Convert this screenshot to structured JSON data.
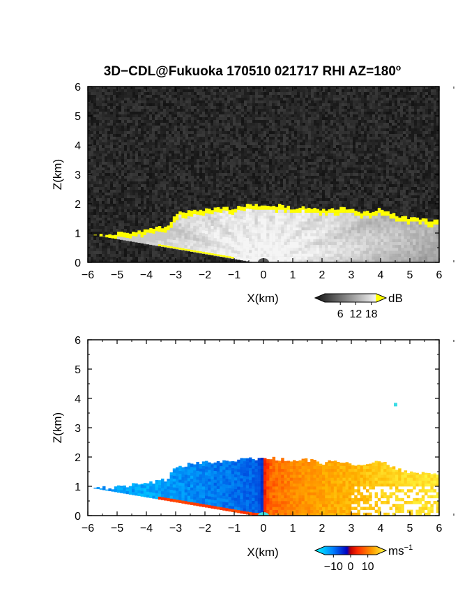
{
  "title": {
    "main": "3D−CDL@Fukuoka 170510 021717 RHI AZ=180",
    "superscript": "o"
  },
  "chart_data": [
    {
      "type": "heatmap",
      "panel": "top",
      "quantity": "backscatter intensity",
      "xlabel": "X(km)",
      "ylabel": "Z(km)",
      "xlim": [
        -6,
        6
      ],
      "ylim": [
        0,
        6
      ],
      "xticks": [
        "−6",
        "−5",
        "−4",
        "−3",
        "−2",
        "−1",
        "0",
        "1",
        "2",
        "3",
        "4",
        "5",
        "6"
      ],
      "yticks": [
        "0",
        "1",
        "2",
        "3",
        "4",
        "5",
        "6"
      ],
      "colorbar": {
        "unit": "dB",
        "ticks": [
          "6",
          "12",
          "18"
        ],
        "range": [
          0,
          20
        ]
      },
      "cloud_top_km": [
        [
          -5.8,
          0.9
        ],
        [
          -5.0,
          0.98
        ],
        [
          -4.0,
          1.1
        ],
        [
          -3.2,
          1.25
        ],
        [
          -3.1,
          1.6
        ],
        [
          -2.8,
          1.7
        ],
        [
          -2.0,
          1.8
        ],
        [
          -1.0,
          1.85
        ],
        [
          -0.5,
          1.95
        ],
        [
          0.0,
          1.95
        ],
        [
          0.5,
          1.95
        ],
        [
          1.0,
          1.85
        ],
        [
          1.5,
          1.9
        ],
        [
          2.0,
          1.8
        ],
        [
          2.5,
          1.85
        ],
        [
          3.0,
          1.8
        ],
        [
          3.5,
          1.7
        ],
        [
          4.0,
          1.85
        ],
        [
          4.5,
          1.6
        ],
        [
          5.0,
          1.5
        ],
        [
          5.5,
          1.45
        ],
        [
          5.9,
          1.45
        ]
      ]
    },
    {
      "type": "heatmap",
      "panel": "bottom",
      "quantity": "Doppler velocity",
      "xlabel": "X(km)",
      "ylabel": "Z(km)",
      "xlim": [
        -6,
        6
      ],
      "ylim": [
        0,
        6
      ],
      "xticks": [
        "−6",
        "−5",
        "−4",
        "−3",
        "−2",
        "−1",
        "0",
        "1",
        "2",
        "3",
        "4",
        "5",
        "6"
      ],
      "yticks": [
        "0",
        "1",
        "2",
        "3",
        "4",
        "5",
        "6"
      ],
      "colorbar": {
        "unit": "ms",
        "unit_exponent": "−1",
        "ticks": [
          "−10",
          "0",
          "10"
        ],
        "range": [
          -15,
          15
        ]
      },
      "velocity_ms": [
        [
          -5.5,
          -9
        ],
        [
          -4.0,
          -10
        ],
        [
          -3.0,
          -9
        ],
        [
          -2.0,
          -8
        ],
        [
          -1.0,
          -7
        ],
        [
          -0.2,
          -6
        ],
        [
          0.2,
          5
        ],
        [
          1.0,
          7
        ],
        [
          2.0,
          9
        ],
        [
          3.0,
          10
        ],
        [
          4.0,
          12
        ],
        [
          5.0,
          13
        ],
        [
          5.9,
          14
        ]
      ],
      "isolated_point": {
        "x": 4.5,
        "z": 3.8,
        "velocity_ms": -2
      }
    }
  ]
}
